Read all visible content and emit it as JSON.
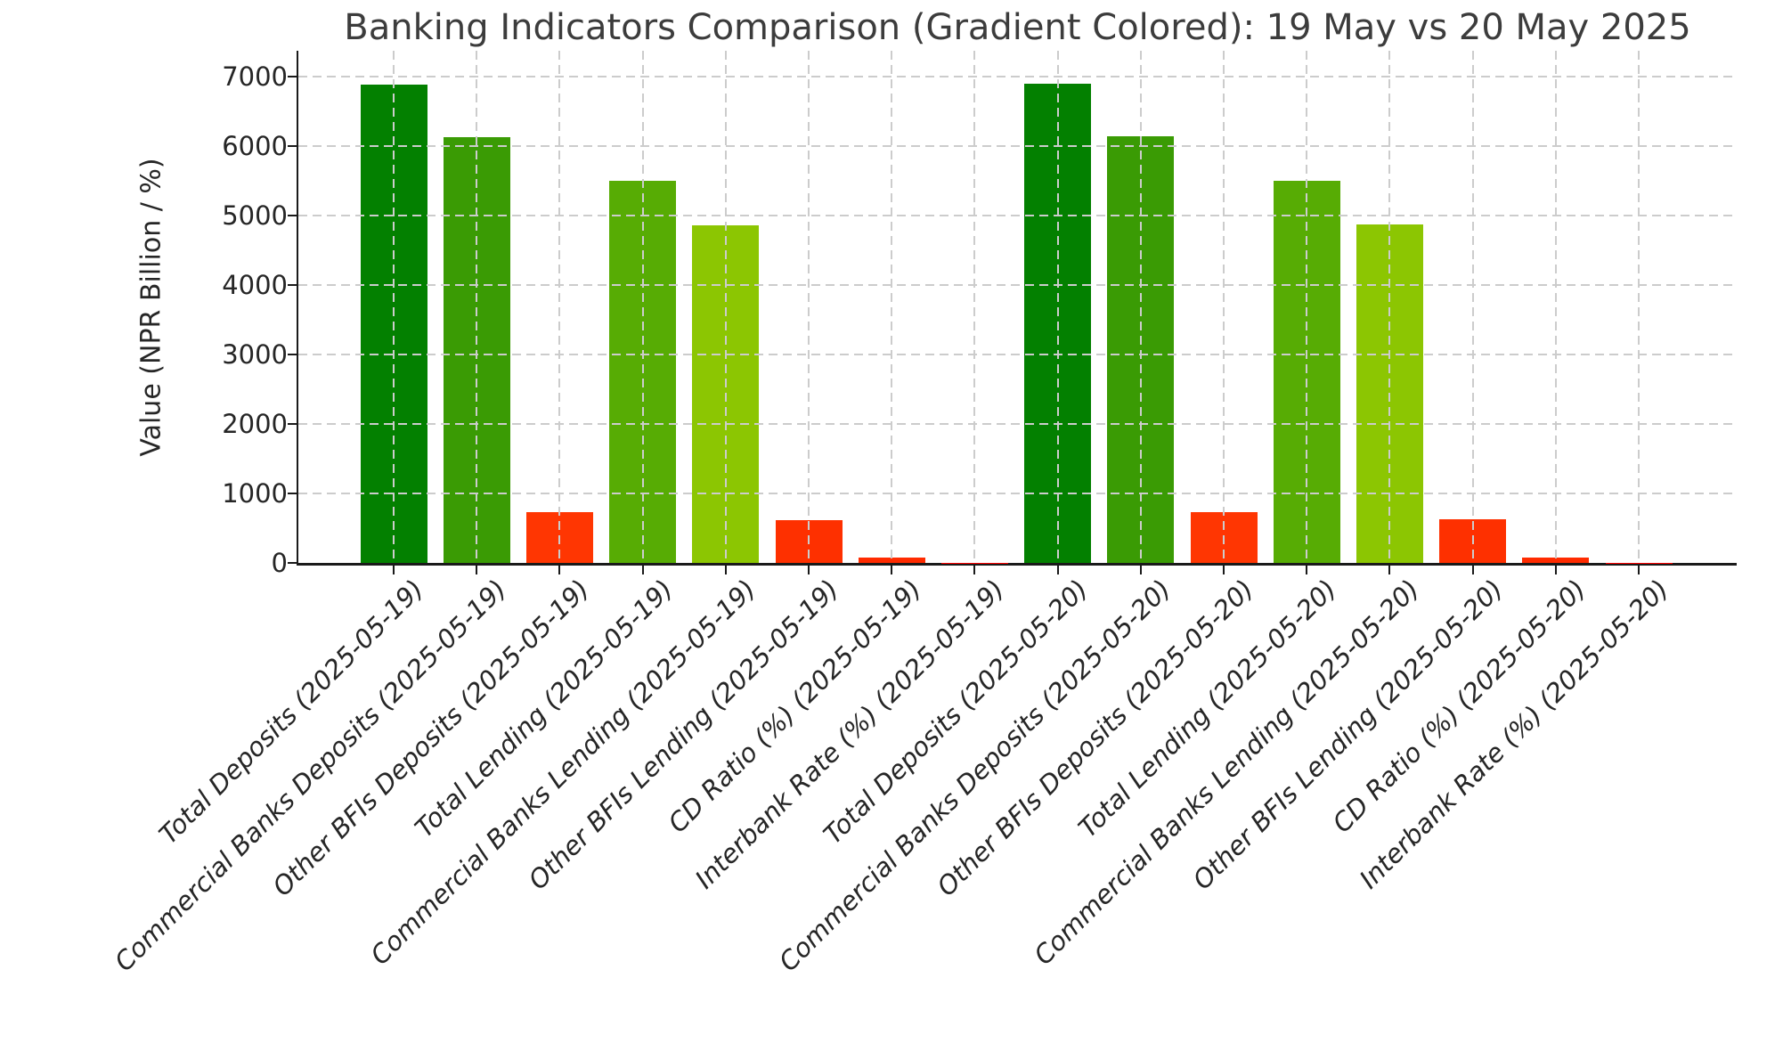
{
  "chart_data": {
    "type": "bar",
    "title": "Banking Indicators Comparison (Gradient Colored): 19 May vs 20 May 2025",
    "ylabel": "Value (NPR Billion / %)",
    "xlabel": "",
    "ylim": [
      0,
      7372
    ],
    "yticks": [
      0,
      1000,
      2000,
      3000,
      4000,
      5000,
      6000,
      7000
    ],
    "grid": true,
    "grid_style": "dashed",
    "legend_position": "none",
    "color_encoding": "gradient by value: green = high, red = low",
    "categories": [
      "Total Deposits (2025-05-19)",
      "Commercial Banks Deposits (2025-05-19)",
      "Other BFIs Deposits (2025-05-19)",
      "Total Lending (2025-05-19)",
      "Commercial Banks Lending (2025-05-19)",
      "Other BFIs Lending (2025-05-19)",
      "CD Ratio (%) (2025-05-19)",
      "Interbank Rate (%) (2025-05-19)",
      "Total Deposits (2025-05-20)",
      "Commercial Banks Deposits (2025-05-20)",
      "Other BFIs Deposits (2025-05-20)",
      "Total Lending (2025-05-20)",
      "Commercial Banks Lending (2025-05-20)",
      "Other BFIs Lending (2025-05-20)",
      "CD Ratio (%) (2025-05-20)",
      "Interbank Rate (%) (2025-05-20)"
    ],
    "values": [
      6880,
      6130,
      725,
      5500,
      4865,
      620,
      80,
      3,
      6895,
      6140,
      728,
      5505,
      4870,
      622,
      80,
      3
    ],
    "bar_colors": [
      "#038000",
      "#3a9b04",
      "#ff3602",
      "#57ac04",
      "#8cc602",
      "#fe3000",
      "#ff2b00",
      "#ff0000",
      "#038000",
      "#3a9b04",
      "#ff3602",
      "#57ac04",
      "#8cc602",
      "#fe3000",
      "#ff2b00",
      "#ff0000"
    ],
    "colors": {
      "background": "#ffffff",
      "axis": "#1a1a1a",
      "grid": "#cccccc",
      "title_text": "#3c3c3c",
      "tick_text": "#262626",
      "green_high": "#038000",
      "red_low": "#ff2b00"
    }
  }
}
